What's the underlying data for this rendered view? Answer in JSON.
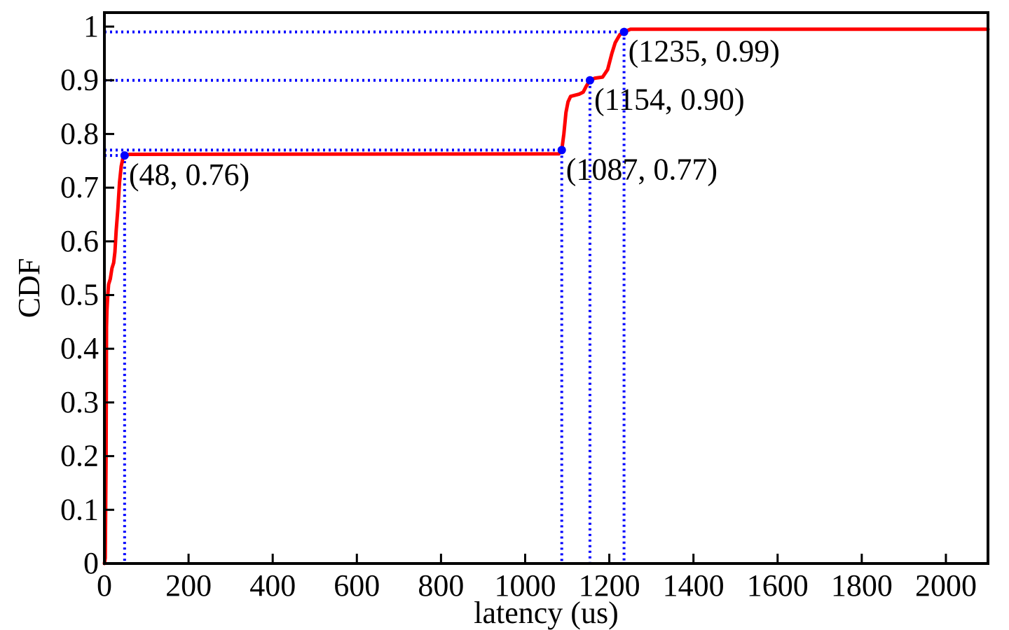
{
  "chart_data": {
    "type": "line",
    "title": "",
    "xlabel": "latency (us)",
    "ylabel": "CDF",
    "xlim": [
      0,
      2100
    ],
    "ylim": [
      0,
      1.02
    ],
    "grid": false,
    "x_ticks": [
      0,
      200,
      400,
      600,
      800,
      1000,
      1200,
      1400,
      1600,
      1800,
      2000
    ],
    "x_tick_labels": [
      "0",
      "200",
      "400",
      "600",
      "800",
      "1000",
      "1200",
      "1400",
      "1600",
      "1800",
      "2000"
    ],
    "y_ticks": [
      0,
      0.1,
      0.2,
      0.3,
      0.4,
      0.5,
      0.6,
      0.7,
      0.8,
      0.9,
      1
    ],
    "y_tick_labels": [
      "0",
      "0.1",
      "0.2",
      "0.3",
      "0.4",
      "0.5",
      "0.6",
      "0.7",
      "0.8",
      "0.9",
      "1"
    ],
    "series": [
      {
        "color": "#ff0000",
        "points": [
          [
            0,
            0
          ],
          [
            2,
            0.01
          ],
          [
            4,
            0.2
          ],
          [
            5,
            0.44
          ],
          [
            6,
            0.47
          ],
          [
            8,
            0.5
          ],
          [
            10,
            0.52
          ],
          [
            14,
            0.53
          ],
          [
            18,
            0.55
          ],
          [
            22,
            0.56
          ],
          [
            25,
            0.58
          ],
          [
            28,
            0.62
          ],
          [
            32,
            0.66
          ],
          [
            36,
            0.71
          ],
          [
            40,
            0.74
          ],
          [
            44,
            0.755
          ],
          [
            48,
            0.76
          ],
          [
            60,
            0.762
          ],
          [
            1080,
            0.763
          ],
          [
            1087,
            0.77
          ],
          [
            1092,
            0.8
          ],
          [
            1097,
            0.84
          ],
          [
            1102,
            0.86
          ],
          [
            1108,
            0.87
          ],
          [
            1128,
            0.874
          ],
          [
            1138,
            0.878
          ],
          [
            1146,
            0.89
          ],
          [
            1154,
            0.9
          ],
          [
            1166,
            0.904
          ],
          [
            1184,
            0.906
          ],
          [
            1196,
            0.92
          ],
          [
            1206,
            0.95
          ],
          [
            1214,
            0.97
          ],
          [
            1225,
            0.985
          ],
          [
            1235,
            0.99
          ],
          [
            1250,
            0.995
          ],
          [
            2100,
            0.995
          ]
        ]
      }
    ],
    "markers": [
      {
        "x": 48,
        "y": 0.76,
        "label": "(48, 0.76)"
      },
      {
        "x": 1087,
        "y": 0.77,
        "label": "(1087, 0.77)"
      },
      {
        "x": 1154,
        "y": 0.9,
        "label": "(1154, 0.90)"
      },
      {
        "x": 1235,
        "y": 0.99,
        "label": "(1235, 0.99)"
      }
    ],
    "marker_color": "#0000ff"
  }
}
